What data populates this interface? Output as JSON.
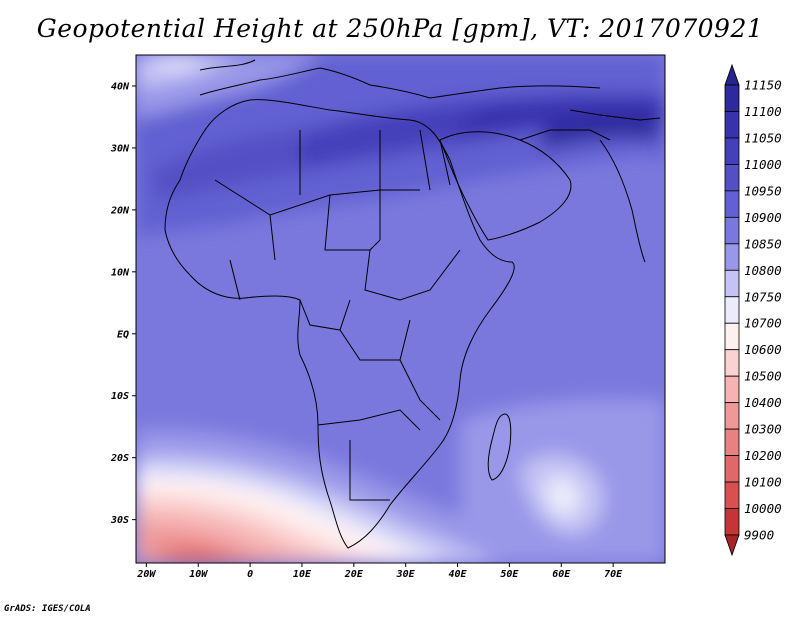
{
  "title": "Geopotential Height at 250hPa [gpm], VT: 2017070921",
  "credit": "GrADS: IGES/COLA",
  "map": {
    "region": "Africa",
    "lon_range": [
      -22,
      80
    ],
    "lat_range": [
      -37,
      45
    ],
    "lon_ticks": [
      {
        "value": -20,
        "label": "20W"
      },
      {
        "value": -10,
        "label": "10W"
      },
      {
        "value": 0,
        "label": "0"
      },
      {
        "value": 10,
        "label": "10E"
      },
      {
        "value": 20,
        "label": "20E"
      },
      {
        "value": 30,
        "label": "30E"
      },
      {
        "value": 40,
        "label": "40E"
      },
      {
        "value": 50,
        "label": "50E"
      },
      {
        "value": 60,
        "label": "60E"
      },
      {
        "value": 70,
        "label": "70E"
      }
    ],
    "lat_ticks": [
      {
        "value": 40,
        "label": "40N"
      },
      {
        "value": 30,
        "label": "30N"
      },
      {
        "value": 20,
        "label": "20N"
      },
      {
        "value": 10,
        "label": "10N"
      },
      {
        "value": 0,
        "label": "EQ"
      },
      {
        "value": -10,
        "label": "10S"
      },
      {
        "value": -20,
        "label": "20S"
      },
      {
        "value": -30,
        "label": "30S"
      }
    ]
  },
  "colorbar": {
    "levels": [
      "11150",
      "11100",
      "11050",
      "11000",
      "10950",
      "10900",
      "10850",
      "10800",
      "10750",
      "10700",
      "10600",
      "10500",
      "10400",
      "10300",
      "10200",
      "10100",
      "10000",
      "9900"
    ],
    "colors": [
      "#27238f",
      "#2e2a9e",
      "#3833ad",
      "#4440ba",
      "#5450c4",
      "#6260d2",
      "#7a78dc",
      "#9997e8",
      "#c4c3f4",
      "#ecebfb",
      "#fff0f0",
      "#fbd2d2",
      "#f5b3b3",
      "#ee9898",
      "#e88181",
      "#e16868",
      "#d95050",
      "#c43535",
      "#a82424"
    ]
  }
}
